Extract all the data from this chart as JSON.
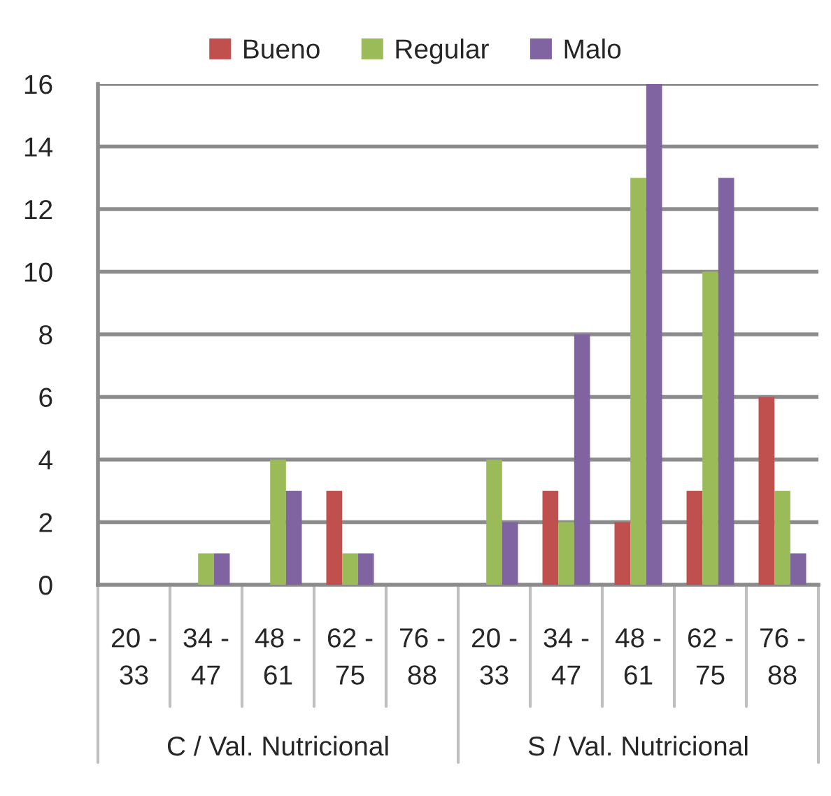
{
  "chart_data": {
    "type": "bar",
    "categories": [
      "20 - 33",
      "34 - 47",
      "48 - 61",
      "62 - 75",
      "76 - 88",
      "20 - 33",
      "34 - 47",
      "48 - 61",
      "62 - 75",
      "76 - 88"
    ],
    "series": [
      {
        "name": "Bueno",
        "color": "#c0504d",
        "values": [
          0,
          0,
          0,
          3,
          0,
          0,
          3,
          2,
          3,
          6
        ]
      },
      {
        "name": "Regular",
        "color": "#9bbb59",
        "values": [
          0,
          1,
          4,
          1,
          0,
          4,
          2,
          13,
          10,
          3
        ]
      },
      {
        "name": "Malo",
        "color": "#8064a2",
        "values": [
          0,
          1,
          3,
          1,
          0,
          2,
          8,
          16,
          13,
          1
        ]
      }
    ],
    "ylim": [
      0,
      16
    ],
    "yticks": [
      0,
      2,
      4,
      6,
      8,
      10,
      12,
      14,
      16
    ],
    "grid": "y",
    "legend": "top",
    "annotations": [
      "C / Val. Nutricional",
      "S / Val. Nutricional"
    ]
  }
}
